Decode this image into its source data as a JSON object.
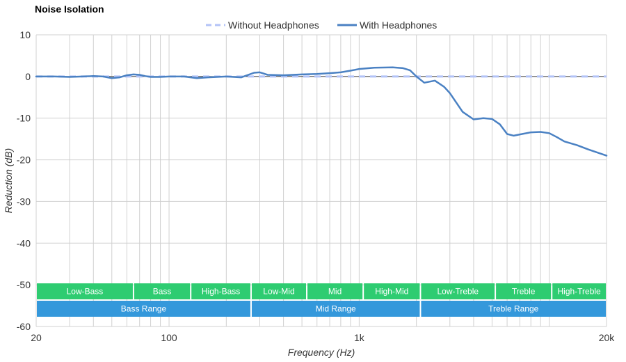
{
  "chart_data": {
    "type": "line",
    "title": "Noise Isolation",
    "xlabel": "Frequency (Hz)",
    "ylabel": "Reduction (dB)",
    "x_scale": "log",
    "xlim": [
      20,
      20000
    ],
    "ylim": [
      -60,
      10
    ],
    "grid": true,
    "legend_position": "top-center",
    "x_ticks": [
      {
        "value": 20,
        "label": "20"
      },
      {
        "value": 100,
        "label": "100"
      },
      {
        "value": 1000,
        "label": "1k"
      },
      {
        "value": 20000,
        "label": "20k"
      }
    ],
    "y_ticks": [
      10,
      0,
      -10,
      -20,
      -30,
      -40,
      -50,
      -60
    ],
    "series": [
      {
        "name": "Without Headphones",
        "style": "dashed",
        "color": "#b3c3f7",
        "x": [
          20,
          20000
        ],
        "y": [
          0,
          0
        ]
      },
      {
        "name": "With Headphones",
        "style": "solid",
        "color": "#4a81c3",
        "x": [
          20,
          25,
          30,
          35,
          40,
          45,
          50,
          55,
          60,
          65,
          70,
          75,
          80,
          90,
          100,
          120,
          140,
          160,
          200,
          240,
          280,
          300,
          330,
          400,
          500,
          600,
          700,
          800,
          900,
          1000,
          1200,
          1500,
          1700,
          1850,
          2000,
          2200,
          2500,
          2800,
          3000,
          3500,
          4000,
          4500,
          5000,
          5500,
          6000,
          6500,
          7000,
          8000,
          9000,
          10000,
          11000,
          12000,
          14000,
          16000,
          20000
        ],
        "y": [
          0,
          0,
          -0.1,
          0,
          0.1,
          0,
          -0.4,
          -0.2,
          0.3,
          0.5,
          0.4,
          0.1,
          -0.1,
          -0.1,
          0,
          0,
          -0.4,
          -0.2,
          0,
          -0.2,
          0.9,
          1.0,
          0.4,
          0.3,
          0.5,
          0.6,
          0.8,
          1.0,
          1.4,
          1.8,
          2.1,
          2.2,
          2.0,
          1.5,
          0.0,
          -1.5,
          -1.0,
          -2.5,
          -4.0,
          -8.5,
          -10.3,
          -10.0,
          -10.2,
          -11.5,
          -13.8,
          -14.2,
          -13.9,
          -13.4,
          -13.3,
          -13.6,
          -14.6,
          -15.6,
          -16.5,
          -17.5,
          -19.0
        ]
      }
    ],
    "range_bands": {
      "narrow": [
        {
          "label": "Low-Bass",
          "from": 20,
          "to": 65
        },
        {
          "label": "Bass",
          "from": 65,
          "to": 130
        },
        {
          "label": "High-Bass",
          "from": 130,
          "to": 270
        },
        {
          "label": "Low-Mid",
          "from": 270,
          "to": 530
        },
        {
          "label": "Mid",
          "from": 530,
          "to": 1050
        },
        {
          "label": "High-Mid",
          "from": 1050,
          "to": 2100
        },
        {
          "label": "Low-Treble",
          "from": 2100,
          "to": 5200
        },
        {
          "label": "Treble",
          "from": 5200,
          "to": 10300
        },
        {
          "label": "High-Treble",
          "from": 10300,
          "to": 20000
        }
      ],
      "wide": [
        {
          "label": "Bass Range",
          "from": 20,
          "to": 270
        },
        {
          "label": "Mid Range",
          "from": 270,
          "to": 2100
        },
        {
          "label": "Treble Range",
          "from": 2100,
          "to": 20000
        }
      ],
      "narrow_color": "#2ecc71",
      "wide_color": "#3498db"
    }
  }
}
